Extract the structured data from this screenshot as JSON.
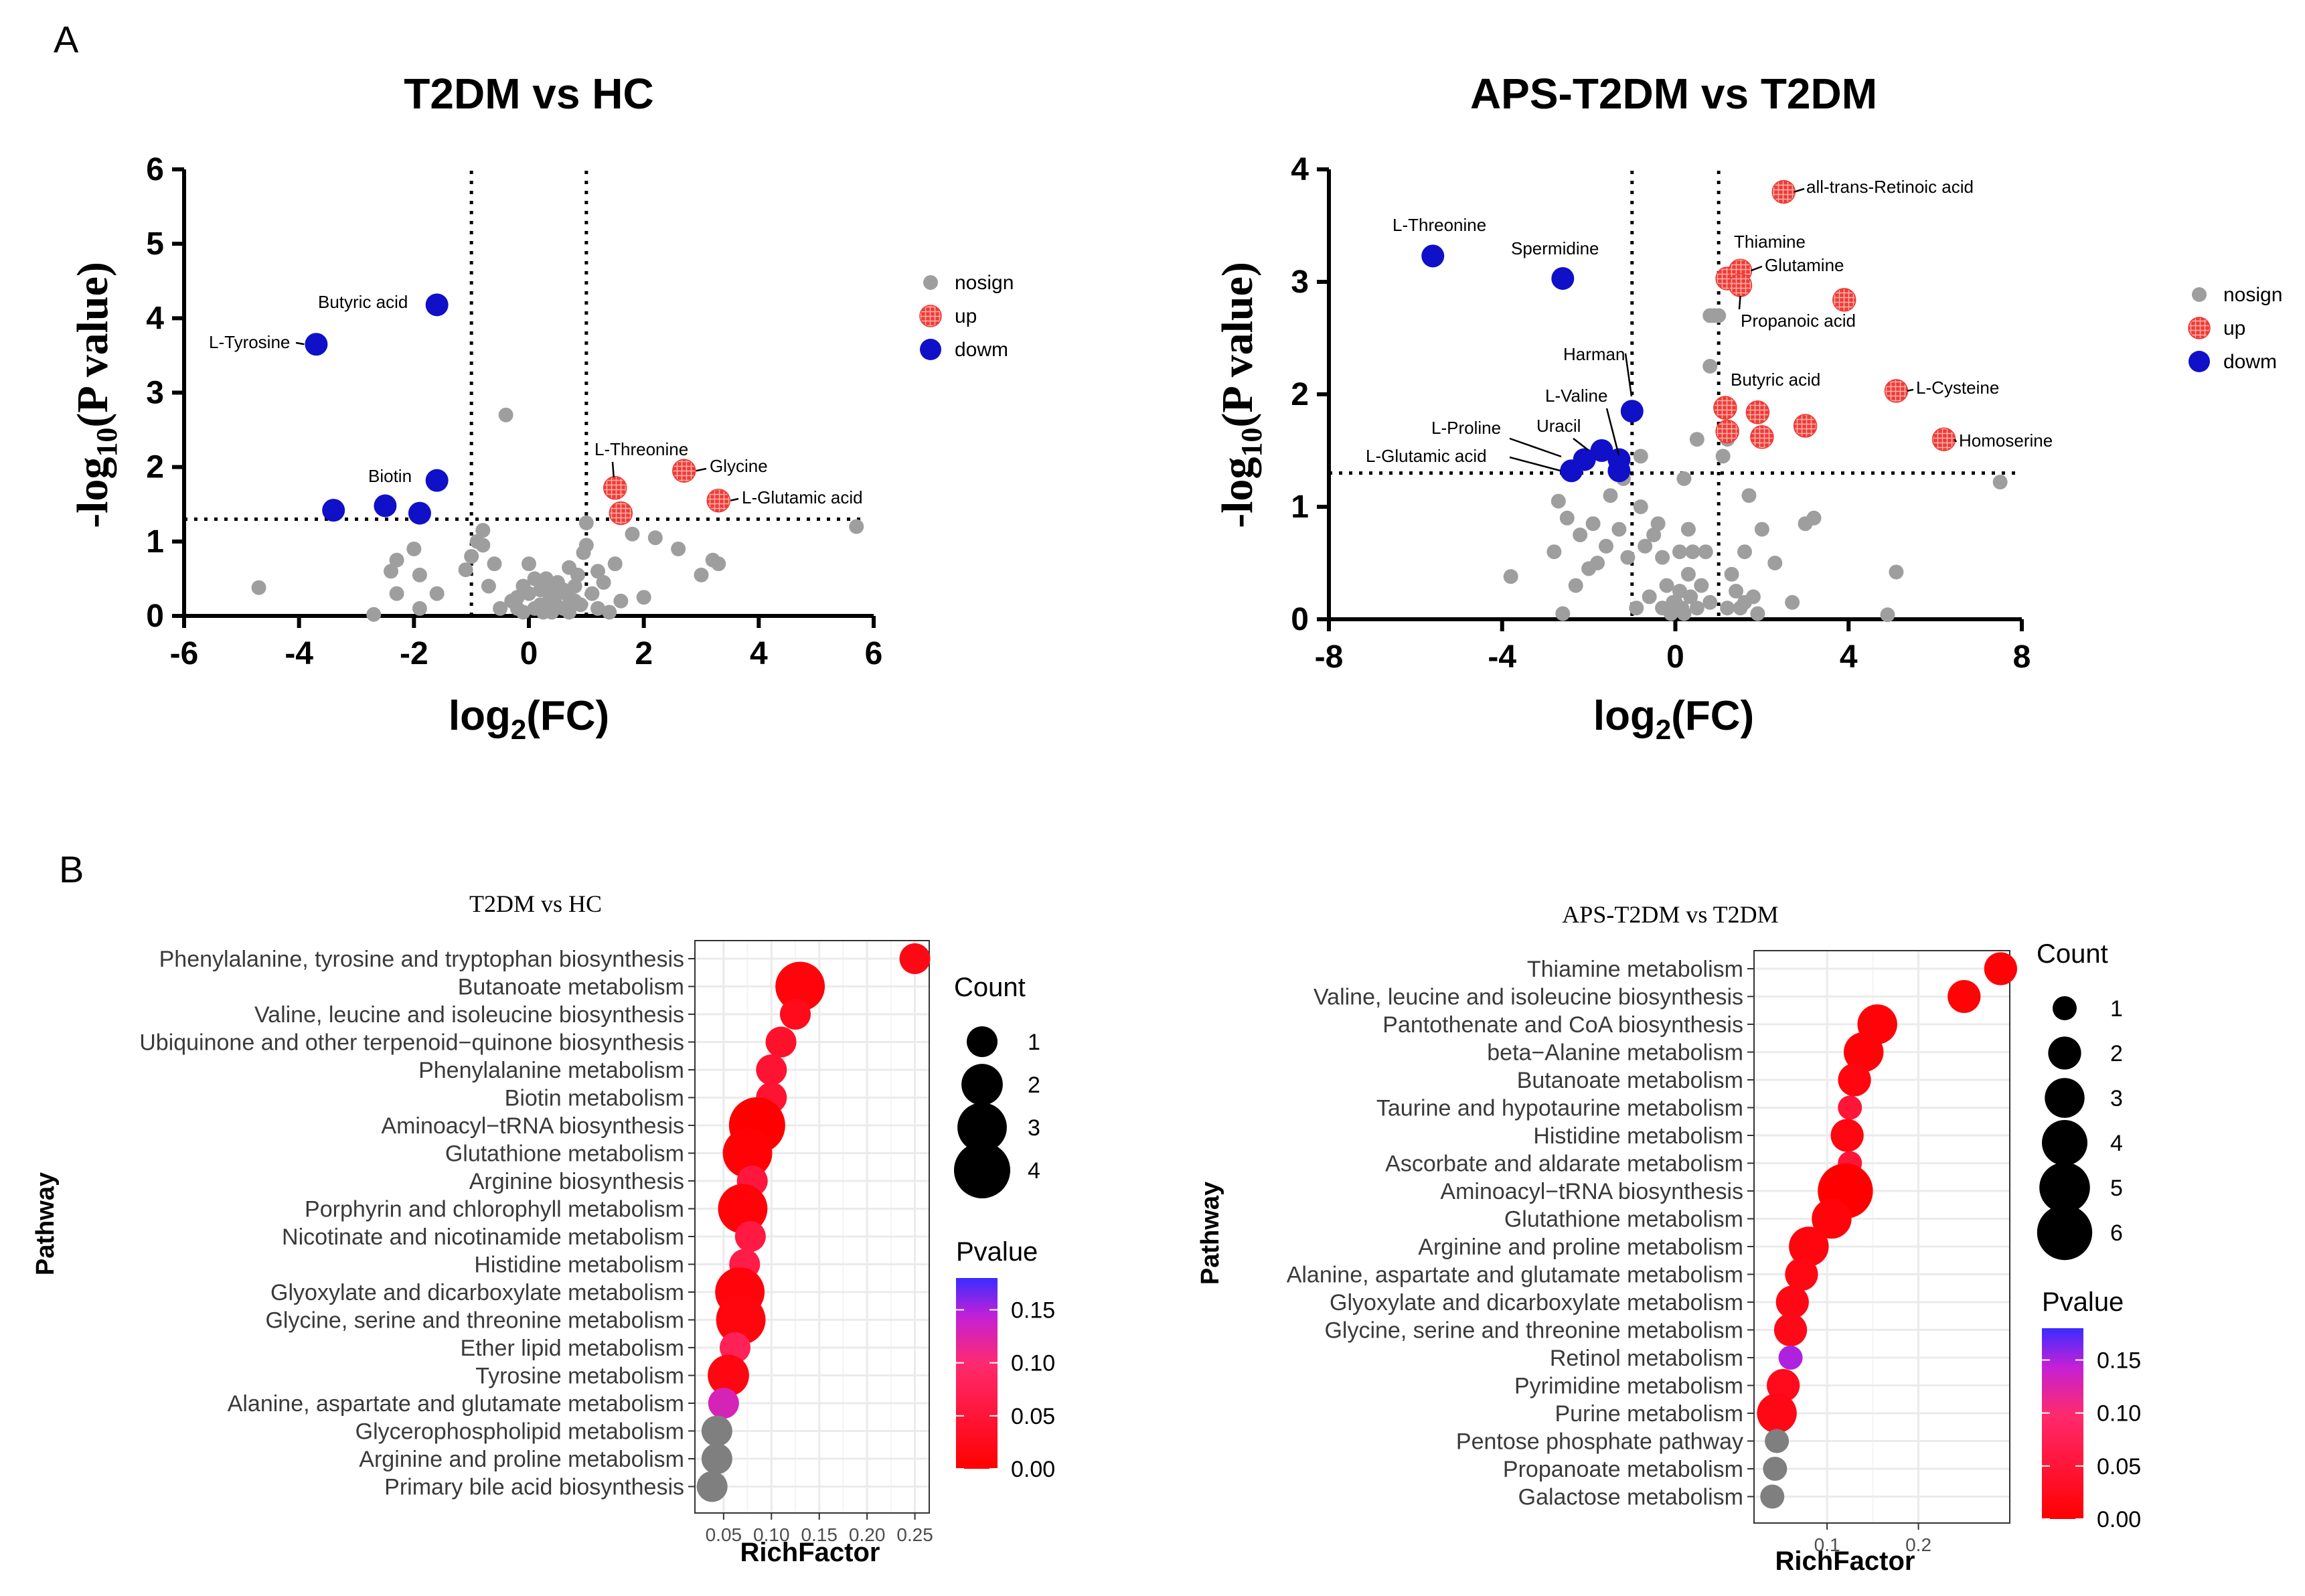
{
  "figure": {
    "panel_a_letter": "A",
    "panel_b_letter": "B"
  },
  "colors": {
    "nosign": "#9e9e9e",
    "up": "#ef3b36",
    "down": "#1010c8",
    "p_low": "#ff0000",
    "p_high": "#3a2cff",
    "grid": "#ebebeb",
    "axis": "#000000",
    "label": "#4d4d4d",
    "pathway_text": "#3a3a3a"
  },
  "chart_data": [
    {
      "type": "scatter",
      "id": "volcano1",
      "title": "T2DM vs HC",
      "xlabel": "log2(FC)",
      "ylabel": "-log10(P value)",
      "xlim": [
        -6,
        6
      ],
      "ylim": [
        0,
        6
      ],
      "xticks": [
        "-6",
        "-4",
        "-2",
        "0",
        "2",
        "4",
        "6"
      ],
      "yticks": [
        "0",
        "1",
        "2",
        "3",
        "4",
        "5",
        "6"
      ],
      "thresholds": {
        "fc": [
          -1,
          1
        ],
        "p": 1.3
      },
      "legend": {
        "position": "right",
        "nosign": "nosign",
        "up": "up",
        "down": "dowm"
      },
      "nosign": [
        [
          -4.7,
          0.38
        ],
        [
          -2.7,
          0.02
        ],
        [
          -2.3,
          0.3
        ],
        [
          -2.0,
          0.9
        ],
        [
          -1.9,
          0.1
        ],
        [
          -1.6,
          0.3
        ],
        [
          -2.3,
          0.75
        ],
        [
          -2.4,
          0.6
        ],
        [
          -1.9,
          0.55
        ],
        [
          -1.1,
          0.62
        ],
        [
          -1.0,
          0.8
        ],
        [
          -0.9,
          1.0
        ],
        [
          -0.8,
          0.95
        ],
        [
          -0.8,
          1.15
        ],
        [
          -0.6,
          0.7
        ],
        [
          -0.4,
          2.7
        ],
        [
          -0.3,
          0.2
        ],
        [
          -0.2,
          0.1
        ],
        [
          -0.1,
          0.4
        ],
        [
          0.0,
          0.3
        ],
        [
          0.0,
          0.7
        ],
        [
          0.1,
          0.1
        ],
        [
          0.2,
          0.35
        ],
        [
          0.2,
          0.15
        ],
        [
          0.3,
          0.5
        ],
        [
          0.35,
          0.2
        ],
        [
          0.4,
          0.05
        ],
        [
          0.5,
          0.3
        ],
        [
          0.5,
          0.45
        ],
        [
          0.6,
          0.1
        ],
        [
          0.7,
          0.25
        ],
        [
          0.7,
          0.65
        ],
        [
          0.8,
          0.4
        ],
        [
          0.85,
          0.55
        ],
        [
          0.9,
          0.15
        ],
        [
          0.95,
          0.85
        ],
        [
          1.0,
          0.95
        ],
        [
          1.0,
          1.25
        ],
        [
          1.1,
          0.3
        ],
        [
          1.2,
          0.6
        ],
        [
          1.3,
          0.45
        ],
        [
          1.4,
          0.05
        ],
        [
          1.5,
          0.7
        ],
        [
          1.6,
          0.2
        ],
        [
          1.8,
          1.1
        ],
        [
          2.0,
          0.25
        ],
        [
          2.2,
          1.05
        ],
        [
          2.6,
          0.9
        ],
        [
          3.0,
          0.55
        ],
        [
          3.2,
          0.75
        ],
        [
          3.3,
          0.7
        ],
        [
          5.7,
          1.2
        ],
        [
          -0.5,
          0.1
        ],
        [
          -0.2,
          0.25
        ],
        [
          0.1,
          0.5
        ],
        [
          0.3,
          0.35
        ],
        [
          0.6,
          0.35
        ],
        [
          0.8,
          0.2
        ],
        [
          -0.7,
          0.4
        ],
        [
          1.2,
          0.1
        ],
        [
          0.45,
          0.18
        ],
        [
          -0.1,
          0.05
        ],
        [
          0.25,
          0.05
        ],
        [
          0.7,
          0.05
        ]
      ],
      "up": [
        {
          "x": 1.5,
          "y": 1.72,
          "label": "L-Threonine"
        },
        {
          "x": 2.7,
          "y": 1.95,
          "label": "Glycine"
        },
        {
          "x": 3.3,
          "y": 1.55,
          "label": "L-Glutamic acid"
        },
        {
          "x": 1.6,
          "y": 1.38,
          "label": ""
        }
      ],
      "down": [
        {
          "x": -1.6,
          "y": 4.18,
          "label": "Butyric acid"
        },
        {
          "x": -3.7,
          "y": 3.65,
          "label": "L-Tyrosine"
        },
        {
          "x": -1.6,
          "y": 1.82,
          "label": "Biotin"
        },
        {
          "x": -3.4,
          "y": 1.42,
          "label": ""
        },
        {
          "x": -2.5,
          "y": 1.48,
          "label": ""
        },
        {
          "x": -1.9,
          "y": 1.38,
          "label": ""
        }
      ]
    },
    {
      "type": "scatter",
      "id": "volcano2",
      "title": "APS-T2DM vs T2DM",
      "xlabel": "log2(FC)",
      "ylabel": "-log10(P value)",
      "xlim": [
        -8,
        8
      ],
      "ylim": [
        0,
        4
      ],
      "xticks": [
        "-8",
        "-4",
        "0",
        "4",
        "8"
      ],
      "yticks": [
        "0",
        "1",
        "2",
        "3",
        "4"
      ],
      "thresholds": {
        "fc": [
          -1,
          1
        ],
        "p": 1.3
      },
      "legend": {
        "position": "right",
        "nosign": "nosign",
        "up": "up",
        "down": "dowm"
      },
      "nosign": [
        [
          -3.8,
          0.38
        ],
        [
          -2.8,
          0.6
        ],
        [
          -2.6,
          0.05
        ],
        [
          -2.7,
          1.05
        ],
        [
          -2.5,
          0.9
        ],
        [
          -2.2,
          0.75
        ],
        [
          -2.0,
          0.45
        ],
        [
          -1.8,
          0.5
        ],
        [
          -1.6,
          0.65
        ],
        [
          -1.5,
          1.1
        ],
        [
          -1.3,
          0.8
        ],
        [
          -1.2,
          1.25
        ],
        [
          -1.1,
          0.55
        ],
        [
          -0.9,
          0.1
        ],
        [
          -0.8,
          1.0
        ],
        [
          -0.8,
          1.45
        ],
        [
          -0.7,
          0.65
        ],
        [
          -0.6,
          0.2
        ],
        [
          -0.5,
          0.75
        ],
        [
          -0.4,
          0.85
        ],
        [
          -0.3,
          0.1
        ],
        [
          -0.2,
          0.3
        ],
        [
          -0.1,
          0.05
        ],
        [
          0.0,
          0.15
        ],
        [
          0.1,
          0.25
        ],
        [
          0.2,
          0.05
        ],
        [
          0.3,
          0.4
        ],
        [
          0.3,
          0.8
        ],
        [
          0.5,
          0.1
        ],
        [
          0.6,
          0.3
        ],
        [
          0.7,
          0.6
        ],
        [
          0.8,
          0.15
        ],
        [
          0.8,
          2.7
        ],
        [
          0.9,
          2.7
        ],
        [
          1.0,
          2.7
        ],
        [
          1.1,
          1.45
        ],
        [
          1.2,
          0.1
        ],
        [
          1.3,
          0.4
        ],
        [
          1.4,
          0.25
        ],
        [
          1.5,
          0.1
        ],
        [
          1.6,
          0.6
        ],
        [
          1.7,
          1.1
        ],
        [
          1.8,
          0.2
        ],
        [
          2.0,
          0.8
        ],
        [
          2.3,
          0.5
        ],
        [
          2.7,
          0.15
        ],
        [
          3.0,
          0.85
        ],
        [
          3.2,
          0.9
        ],
        [
          0.8,
          2.25
        ],
        [
          0.5,
          1.6
        ],
        [
          1.2,
          1.6
        ],
        [
          5.1,
          0.42
        ],
        [
          4.9,
          0.04
        ],
        [
          7.5,
          1.22
        ],
        [
          0.2,
          1.25
        ],
        [
          0.1,
          0.6
        ],
        [
          -0.3,
          0.55
        ],
        [
          -1.9,
          0.85
        ],
        [
          -2.3,
          0.3
        ],
        [
          0.4,
          0.6
        ],
        [
          -0.05,
          0.15
        ],
        [
          0.15,
          0.1
        ],
        [
          0.35,
          0.2
        ],
        [
          1.6,
          0.15
        ],
        [
          1.9,
          0.05
        ]
      ],
      "up": [
        {
          "x": 2.5,
          "y": 3.8,
          "label": "all-trans-Retinoic acid"
        },
        {
          "x": 1.2,
          "y": 3.03,
          "label": "Thiamine"
        },
        {
          "x": 1.5,
          "y": 3.1,
          "label": "Glutamine"
        },
        {
          "x": 1.5,
          "y": 2.97,
          "label": "Propanoic acid"
        },
        {
          "x": 3.9,
          "y": 2.84,
          "label": ""
        },
        {
          "x": 1.15,
          "y": 1.88,
          "label": "Butyric acid"
        },
        {
          "x": 1.9,
          "y": 1.84,
          "label": ""
        },
        {
          "x": 1.2,
          "y": 1.67,
          "label": ""
        },
        {
          "x": 2.0,
          "y": 1.62,
          "label": ""
        },
        {
          "x": 3.0,
          "y": 1.72,
          "label": ""
        },
        {
          "x": 5.1,
          "y": 2.03,
          "label": "L-Cysteine"
        },
        {
          "x": 6.2,
          "y": 1.6,
          "label": "Homoserine"
        }
      ],
      "down": [
        {
          "x": -5.6,
          "y": 3.23,
          "label": "L-Threonine"
        },
        {
          "x": -2.6,
          "y": 3.03,
          "label": "Spermidine"
        },
        {
          "x": -1.0,
          "y": 1.85,
          "label": "L-Valine"
        },
        {
          "x": -1.7,
          "y": 1.5,
          "label": "Uracil"
        },
        {
          "x": -2.1,
          "y": 1.42,
          "label": "L-Proline"
        },
        {
          "x": -2.4,
          "y": 1.32,
          "label": "L-Glutamic acid"
        },
        {
          "x": -1.3,
          "y": 1.42,
          "label": ""
        },
        {
          "x": -1.3,
          "y": 1.32,
          "label": ""
        }
      ],
      "annotations": [
        {
          "text": "Harman"
        }
      ]
    },
    {
      "type": "scatter",
      "id": "bubble1",
      "title": "T2DM vs HC",
      "xlabel": "RichFactor",
      "ylabel": "Pathway",
      "xlim": [
        0.02,
        0.265
      ],
      "xticks": [
        0.05,
        0.1,
        0.15,
        0.2,
        0.25
      ],
      "xtick_labels": [
        "0.05",
        "0.10",
        "0.15",
        "0.20",
        "0.25"
      ],
      "count_legend": {
        "title": "Count",
        "values": [
          1,
          2,
          3,
          4
        ]
      },
      "pvalue_legend": {
        "title": "Pvalue",
        "range": [
          0,
          0.18
        ],
        "ticks": [
          "0.00",
          "0.05",
          "0.10",
          "0.15"
        ]
      },
      "pathways": [
        {
          "name": "Phenylalanine, tyrosine and tryptophan biosynthesis",
          "rich": 0.25,
          "count": 1,
          "p": 0.02
        },
        {
          "name": "Butanoate metabolism",
          "rich": 0.13,
          "count": 3,
          "p": 0.01
        },
        {
          "name": "Valine, leucine and isoleucine biosynthesis",
          "rich": 0.125,
          "count": 1,
          "p": 0.025
        },
        {
          "name": "Ubiquinone and other terpenoid−quinone biosynthesis",
          "rich": 0.11,
          "count": 1,
          "p": 0.04
        },
        {
          "name": "Phenylalanine metabolism",
          "rich": 0.1,
          "count": 1,
          "p": 0.045
        },
        {
          "name": "Biotin metabolism",
          "rich": 0.1,
          "count": 1,
          "p": 0.045
        },
        {
          "name": "Aminoacyl−tRNA biosynthesis",
          "rich": 0.085,
          "count": 4,
          "p": 0.0
        },
        {
          "name": "Glutathione metabolism",
          "rich": 0.075,
          "count": 3,
          "p": 0.005
        },
        {
          "name": "Arginine biosynthesis",
          "rich": 0.08,
          "count": 1,
          "p": 0.055
        },
        {
          "name": "Porphyrin and chlorophyll metabolism",
          "rich": 0.07,
          "count": 3,
          "p": 0.008
        },
        {
          "name": "Nicotinate and nicotinamide metabolism",
          "rich": 0.078,
          "count": 1,
          "p": 0.06
        },
        {
          "name": "Histidine metabolism",
          "rich": 0.072,
          "count": 1,
          "p": 0.065
        },
        {
          "name": "Glyoxylate and dicarboxylate metabolism",
          "rich": 0.067,
          "count": 3,
          "p": 0.01
        },
        {
          "name": "Glycine, serine and threonine metabolism",
          "rich": 0.068,
          "count": 3,
          "p": 0.012
        },
        {
          "name": "Ether lipid metabolism",
          "rich": 0.062,
          "count": 1,
          "p": 0.08
        },
        {
          "name": "Tyrosine metabolism",
          "rich": 0.055,
          "count": 2,
          "p": 0.015
        },
        {
          "name": "Alanine, aspartate and glutamate metabolism",
          "rich": 0.05,
          "count": 1,
          "p": 0.13
        },
        {
          "name": "Glycerophospholipid metabolism",
          "rich": 0.043,
          "count": 1,
          "p": null
        },
        {
          "name": "Arginine and proline metabolism",
          "rich": 0.043,
          "count": 1,
          "p": null
        },
        {
          "name": "Primary bile acid biosynthesis",
          "rich": 0.038,
          "count": 1,
          "p": null
        }
      ]
    },
    {
      "type": "scatter",
      "id": "bubble2",
      "title": "APS-T2DM vs T2DM",
      "xlabel": "RichFactor",
      "ylabel": "Pathway",
      "xlim": [
        0.02,
        0.3
      ],
      "xticks": [
        0.1,
        0.2
      ],
      "xtick_labels": [
        "0.1",
        "0.2"
      ],
      "count_legend": {
        "title": "Count",
        "values": [
          1,
          2,
          3,
          4,
          5,
          6
        ]
      },
      "pvalue_legend": {
        "title": "Pvalue",
        "range": [
          0,
          0.18
        ],
        "ticks": [
          "0.00",
          "0.05",
          "0.10",
          "0.15"
        ]
      },
      "pathways": [
        {
          "name": "Thiamine metabolism",
          "rich": 0.29,
          "count": 2,
          "p": 0.005
        },
        {
          "name": "Valine, leucine and isoleucine biosynthesis",
          "rich": 0.25,
          "count": 2,
          "p": 0.006
        },
        {
          "name": "Pantothenate and CoA biosynthesis",
          "rich": 0.155,
          "count": 3,
          "p": 0.008
        },
        {
          "name": "beta−Alanine metabolism",
          "rich": 0.14,
          "count": 3,
          "p": 0.008
        },
        {
          "name": "Butanoate metabolism",
          "rich": 0.13,
          "count": 2,
          "p": 0.015
        },
        {
          "name": "Taurine and hypotaurine metabolism",
          "rich": 0.125,
          "count": 1,
          "p": 0.05
        },
        {
          "name": "Histidine metabolism",
          "rich": 0.122,
          "count": 2,
          "p": 0.015
        },
        {
          "name": "Ascorbate and aldarate metabolism",
          "rich": 0.125,
          "count": 1,
          "p": 0.05
        },
        {
          "name": "Aminoacyl−tRNA biosynthesis",
          "rich": 0.12,
          "count": 6,
          "p": 0.0
        },
        {
          "name": "Glutathione metabolism",
          "rich": 0.105,
          "count": 3,
          "p": 0.01
        },
        {
          "name": "Arginine and proline metabolism",
          "rich": 0.08,
          "count": 3,
          "p": 0.012
        },
        {
          "name": "Alanine, aspartate and glutamate metabolism",
          "rich": 0.072,
          "count": 2,
          "p": 0.018
        },
        {
          "name": "Glyoxylate and dicarboxylate metabolism",
          "rich": 0.062,
          "count": 2,
          "p": 0.02
        },
        {
          "name": "Glycine, serine and threonine metabolism",
          "rich": 0.06,
          "count": 2,
          "p": 0.022
        },
        {
          "name": "Retinol metabolism",
          "rich": 0.06,
          "count": 1,
          "p": 0.15
        },
        {
          "name": "Pyrimidine metabolism",
          "rich": 0.052,
          "count": 2,
          "p": 0.025
        },
        {
          "name": "Purine metabolism",
          "rich": 0.045,
          "count": 3,
          "p": 0.02
        },
        {
          "name": "Pentose phosphate pathway",
          "rich": 0.045,
          "count": 1,
          "p": null
        },
        {
          "name": "Propanoate metabolism",
          "rich": 0.043,
          "count": 1,
          "p": null
        },
        {
          "name": "Galactose metabolism",
          "rich": 0.04,
          "count": 1,
          "p": null
        }
      ]
    }
  ]
}
